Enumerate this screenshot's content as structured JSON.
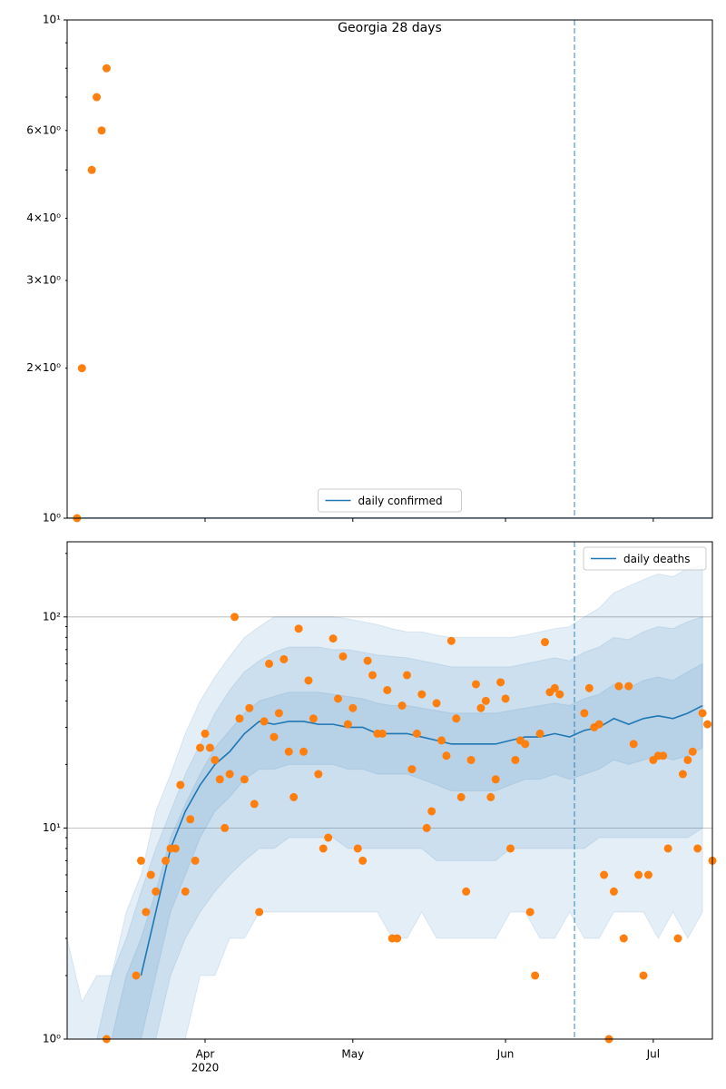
{
  "chart_data": [
    {
      "type": "line",
      "title": "Georgia 28 days",
      "log_y": true,
      "grid": false,
      "legend": "lower center",
      "xlim": [
        0,
        131
      ],
      "ylim": [
        1,
        10
      ],
      "yticks": [
        {
          "value": 1,
          "label": "10⁰"
        },
        {
          "value": 10,
          "label": "10¹"
        }
      ],
      "yminorticks": [
        {
          "value": 2,
          "label": "2×10⁰"
        },
        {
          "value": 3,
          "label": "3×10⁰"
        },
        {
          "value": 4,
          "label": "4×10⁰"
        },
        5,
        {
          "value": 6,
          "label": "6×10⁰"
        },
        7,
        8,
        9
      ],
      "vline": 103,
      "series": [
        {
          "name": "daily confirmed",
          "color": "#1f77b4",
          "x": [
            0,
            131
          ],
          "values": [
            1,
            1
          ]
        }
      ],
      "points": {
        "color": "#ff7f0e",
        "x": [
          2,
          3,
          5,
          6,
          7,
          8
        ],
        "values": [
          1,
          2,
          5,
          7,
          6,
          8
        ]
      }
    },
    {
      "type": "line",
      "log_y": true,
      "grid": true,
      "legend": "upper right",
      "xlim": [
        0,
        131
      ],
      "ylim": [
        1,
        227
      ],
      "xticks": [
        {
          "value": 28,
          "label": "Apr"
        },
        {
          "value": 58,
          "label": "May"
        },
        {
          "value": 89,
          "label": "Jun"
        },
        {
          "value": 119,
          "label": "Jul"
        }
      ],
      "xtick_sublabel": "2020",
      "yticks": [
        {
          "value": 1,
          "label": "10⁰"
        },
        {
          "value": 10,
          "label": "10¹"
        },
        {
          "value": 100,
          "label": "10²"
        }
      ],
      "yminorticks": [
        2,
        3,
        4,
        5,
        6,
        7,
        8,
        9,
        20,
        30,
        40,
        50,
        60,
        70,
        80,
        90,
        200
      ],
      "vline": 103,
      "band_opacity": 0.12,
      "band_x": [
        0,
        3,
        6,
        9,
        12,
        15,
        18,
        21,
        24,
        27,
        30,
        33,
        36,
        39,
        42,
        45,
        48,
        51,
        54,
        57,
        60,
        63,
        66,
        69,
        72,
        75,
        78,
        81,
        84,
        87,
        90,
        93,
        96,
        99,
        102,
        105,
        108,
        111,
        114,
        117,
        120,
        123,
        126,
        129
      ],
      "bands": [
        {
          "color": "#1f77b4",
          "upper": [
            3,
            1.5,
            2,
            2,
            4,
            6,
            12,
            18,
            28,
            40,
            52,
            65,
            80,
            90,
            100,
            100,
            100,
            100,
            100,
            98,
            95,
            92,
            88,
            85,
            85,
            82,
            80,
            80,
            80,
            80,
            80,
            82,
            85,
            88,
            90,
            100,
            110,
            130,
            140,
            150,
            160,
            155,
            170,
            175
          ],
          "lower": [
            1,
            1,
            1,
            1,
            1,
            1,
            1,
            1,
            1,
            2,
            2,
            3,
            3,
            4,
            4,
            4,
            4,
            4,
            4,
            4,
            4,
            4,
            3,
            3,
            4,
            3,
            3,
            3,
            3,
            3,
            4,
            4,
            3,
            3,
            4,
            3,
            3,
            4,
            4,
            4,
            3,
            4,
            3,
            4
          ]
        },
        {
          "color": "#1f77b4",
          "upper": [
            1,
            1,
            1,
            2,
            3,
            5,
            8,
            12,
            18,
            25,
            35,
            45,
            55,
            62,
            68,
            72,
            72,
            72,
            70,
            70,
            68,
            66,
            65,
            64,
            62,
            60,
            58,
            58,
            58,
            58,
            58,
            60,
            62,
            64,
            62,
            68,
            72,
            80,
            78,
            85,
            90,
            88,
            95,
            100
          ],
          "lower": [
            1,
            1,
            1,
            1,
            1,
            1,
            1,
            2,
            3,
            4,
            5,
            6,
            7,
            8,
            8,
            9,
            9,
            9,
            9,
            8,
            8,
            8,
            8,
            8,
            8,
            7,
            7,
            7,
            7,
            7,
            8,
            8,
            8,
            8,
            8,
            8,
            9,
            9,
            9,
            9,
            9,
            9,
            9,
            10
          ]
        },
        {
          "color": "#1f77b4",
          "upper": [
            1,
            1,
            1,
            1,
            2,
            3,
            5,
            9,
            13,
            18,
            24,
            29,
            35,
            40,
            42,
            44,
            44,
            44,
            43,
            42,
            41,
            39,
            38,
            38,
            37,
            36,
            35,
            35,
            35,
            35,
            36,
            37,
            38,
            39,
            38,
            41,
            43,
            48,
            46,
            50,
            52,
            50,
            55,
            60
          ],
          "lower": [
            1,
            1,
            1,
            1,
            1,
            1,
            2,
            4,
            6,
            9,
            12,
            14,
            17,
            19,
            19,
            20,
            20,
            20,
            20,
            19,
            19,
            18,
            18,
            18,
            17,
            16,
            15,
            15,
            15,
            15,
            16,
            17,
            17,
            18,
            17,
            18,
            19,
            21,
            20,
            21,
            22,
            21,
            22,
            24
          ]
        }
      ],
      "series": [
        {
          "name": "daily deaths",
          "color": "#1f77b4",
          "x": [
            0,
            3,
            6,
            9,
            12,
            15,
            18,
            21,
            24,
            27,
            30,
            33,
            36,
            39,
            42,
            45,
            48,
            51,
            54,
            57,
            60,
            63,
            66,
            69,
            72,
            75,
            78,
            81,
            84,
            87,
            90,
            93,
            96,
            99,
            102,
            105,
            108,
            111,
            114,
            117,
            120,
            123,
            126,
            129
          ],
          "values": [
            null,
            null,
            null,
            null,
            null,
            2,
            4,
            8,
            12,
            16,
            20,
            23,
            28,
            32,
            31,
            32,
            32,
            31,
            31,
            30,
            30,
            28,
            28,
            28,
            27,
            26,
            25,
            25,
            25,
            25,
            26,
            27,
            27,
            28,
            27,
            29,
            30,
            33,
            31,
            33,
            34,
            33,
            35,
            38
          ]
        }
      ],
      "points": {
        "color": "#ff7f0e",
        "x": [
          8,
          14,
          15,
          16,
          17,
          18,
          20,
          21,
          22,
          23,
          24,
          25,
          26,
          27,
          28,
          29,
          30,
          31,
          32,
          33,
          34,
          35,
          36,
          37,
          38,
          39,
          40,
          41,
          42,
          43,
          44,
          45,
          46,
          47,
          48,
          49,
          50,
          51,
          52,
          53,
          54,
          55,
          56,
          57,
          58,
          59,
          60,
          61,
          62,
          63,
          64,
          65,
          66,
          67,
          68,
          69,
          70,
          71,
          72,
          73,
          74,
          75,
          76,
          77,
          78,
          79,
          80,
          81,
          82,
          83,
          84,
          85,
          86,
          87,
          88,
          89,
          90,
          91,
          92,
          93,
          94,
          95,
          96,
          97,
          98,
          99,
          100,
          105,
          106,
          107,
          108,
          109,
          110,
          111,
          112,
          113,
          114,
          115,
          116,
          117,
          118,
          119,
          120,
          121,
          122,
          124,
          125,
          126,
          127,
          128,
          129,
          130,
          131
        ],
        "values": [
          1,
          2,
          7,
          4,
          6,
          5,
          7,
          8,
          8,
          16,
          5,
          11,
          7,
          24,
          28,
          24,
          21,
          17,
          10,
          18,
          100,
          33,
          17,
          37,
          13,
          4,
          32,
          60,
          27,
          35,
          63,
          23,
          14,
          88,
          23,
          50,
          33,
          18,
          8,
          9,
          79,
          41,
          65,
          31,
          37,
          8,
          7,
          62,
          53,
          28,
          28,
          45,
          3,
          3,
          38,
          53,
          19,
          28,
          43,
          10,
          12,
          39,
          26,
          22,
          77,
          33,
          14,
          5,
          21,
          48,
          37,
          40,
          14,
          17,
          49,
          41,
          8,
          21,
          26,
          25,
          4,
          2,
          28,
          76,
          44,
          46,
          43,
          35,
          46,
          30,
          31,
          6,
          1,
          5,
          47,
          3,
          47,
          25,
          6,
          2,
          6,
          21,
          22,
          22,
          8,
          3,
          18,
          21,
          23,
          8,
          35,
          31,
          7
        ]
      }
    }
  ]
}
